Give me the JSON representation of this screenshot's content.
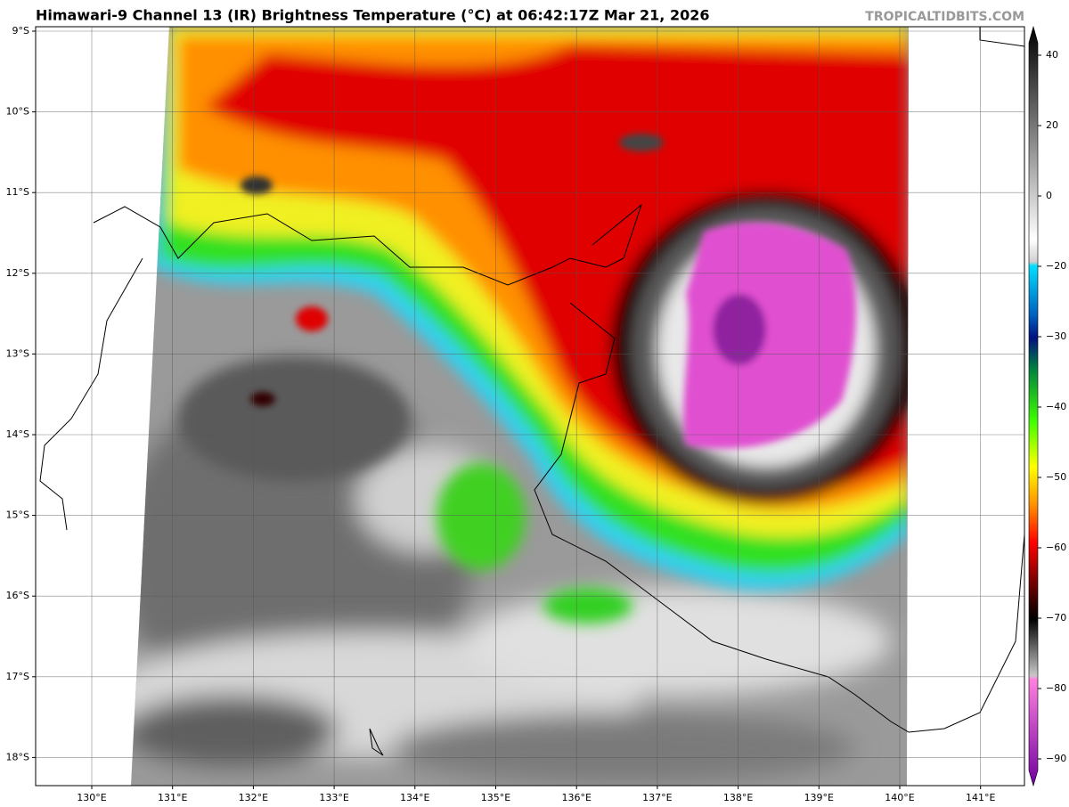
{
  "header": {
    "title": "Himawari-9 Channel 13 (IR) Brightness Temperature (°C) at 06:42:17Z Mar 21, 2026",
    "credit": "TROPICALTIDBITS.COM"
  },
  "map": {
    "lat_labels": [
      "9°S",
      "10°S",
      "11°S",
      "12°S",
      "13°S",
      "14°S",
      "15°S",
      "16°S",
      "17°S",
      "18°S"
    ],
    "lon_labels": [
      "130°E",
      "131°E",
      "132°E",
      "133°E",
      "134°E",
      "135°E",
      "136°E",
      "137°E",
      "138°E",
      "139°E",
      "140°E",
      "141°E"
    ]
  },
  "colorbar": {
    "labels": [
      "40",
      "20",
      "0",
      "−20",
      "−30",
      "−40",
      "−50",
      "−60",
      "−70",
      "−80",
      "−90"
    ]
  }
}
